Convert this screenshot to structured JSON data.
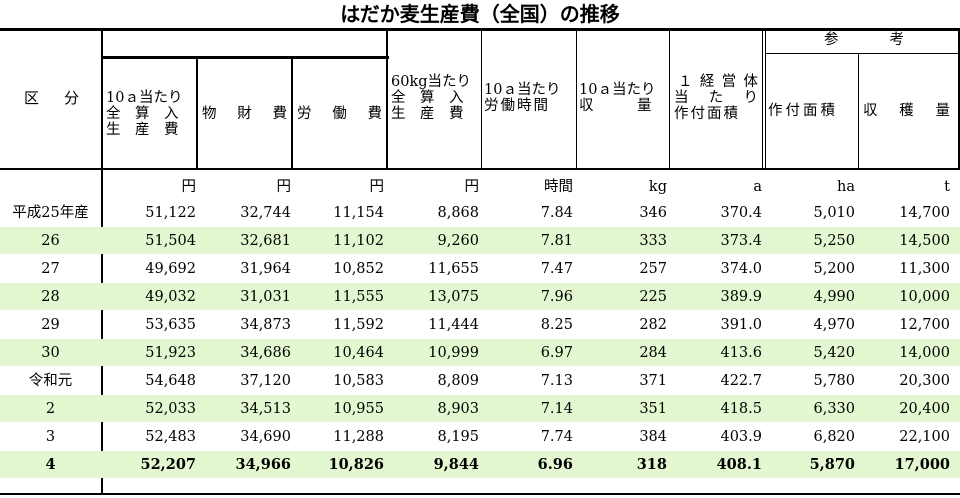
{
  "title": "はだか麦生産費（全国）の推移",
  "headers": {
    "kubun": [
      "区",
      "分"
    ],
    "zensan10a": [
      "10ａ当たり",
      "全　算　入",
      "生　産　費"
    ],
    "zaihi": [
      "物",
      "財",
      "費"
    ],
    "rodohi": [
      "労",
      "働",
      "費"
    ],
    "zensan60kg": [
      "60kg当たり",
      "全　算　入",
      "生　産　費"
    ],
    "rodojikan": [
      "10ａ当たり",
      "労働時間"
    ],
    "shuryo": [
      "10ａ当たり",
      "収　　　量"
    ],
    "sakutsuke1": [
      "１",
      "経",
      "営",
      "体",
      "当",
      "た",
      "り",
      "作付面積"
    ],
    "sanko": [
      "参",
      "考"
    ],
    "sakutsuke": [
      "作付面積"
    ],
    "shukakuryo": [
      "収",
      "穫",
      "量"
    ]
  },
  "units": [
    "円",
    "円",
    "円",
    "円",
    "時間",
    "kg",
    "a",
    "ha",
    "t"
  ],
  "rows": [
    {
      "label": "平成25年産",
      "values": [
        "51,122",
        "32,744",
        "11,154",
        "8,868",
        "7.84",
        "346",
        "370.4",
        "5,010",
        "14,700"
      ],
      "highlight": false
    },
    {
      "label": "26",
      "values": [
        "51,504",
        "32,681",
        "11,102",
        "9,260",
        "7.81",
        "333",
        "373.4",
        "5,250",
        "14,500"
      ],
      "highlight": true
    },
    {
      "label": "27",
      "values": [
        "49,692",
        "31,964",
        "10,852",
        "11,655",
        "7.47",
        "257",
        "374.0",
        "5,200",
        "11,300"
      ],
      "highlight": false
    },
    {
      "label": "28",
      "values": [
        "49,032",
        "31,031",
        "11,555",
        "13,075",
        "7.96",
        "225",
        "389.9",
        "4,990",
        "10,000"
      ],
      "highlight": true
    },
    {
      "label": "29",
      "values": [
        "53,635",
        "34,873",
        "11,592",
        "11,444",
        "8.25",
        "282",
        "391.0",
        "4,970",
        "12,700"
      ],
      "highlight": false
    },
    {
      "label": "30",
      "values": [
        "51,923",
        "34,686",
        "10,464",
        "10,999",
        "6.97",
        "284",
        "413.6",
        "5,420",
        "14,000"
      ],
      "highlight": true
    },
    {
      "label": "令和元",
      "values": [
        "54,648",
        "37,120",
        "10,583",
        "8,809",
        "7.13",
        "371",
        "422.7",
        "5,780",
        "20,300"
      ],
      "highlight": false
    },
    {
      "label": "2",
      "values": [
        "52,033",
        "34,513",
        "10,955",
        "8,903",
        "7.14",
        "351",
        "418.5",
        "6,330",
        "20,400"
      ],
      "highlight": true
    },
    {
      "label": "3",
      "values": [
        "52,483",
        "34,690",
        "11,288",
        "8,195",
        "7.74",
        "384",
        "403.9",
        "6,820",
        "22,100"
      ],
      "highlight": false
    },
    {
      "label": "4",
      "values": [
        "52,207",
        "34,966",
        "10,826",
        "9,844",
        "6.96",
        "318",
        "408.1",
        "5,870",
        "17,000"
      ],
      "highlight": true,
      "bold": true
    }
  ]
}
